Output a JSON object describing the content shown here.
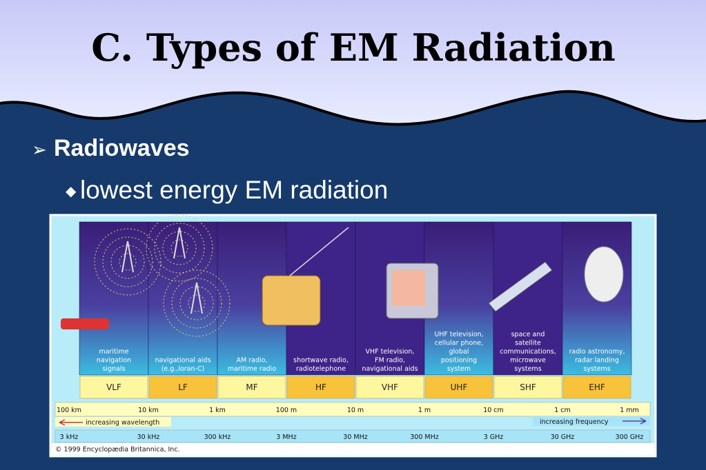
{
  "title": "C. Types of EM Radiation",
  "bullets": [
    {
      "text": "Radiowaves",
      "sub": [
        "lowest energy EM radiation"
      ]
    }
  ],
  "figure": {
    "bands": [
      {
        "label": "VLF",
        "description": [
          "maritime",
          "navigation",
          "signals"
        ]
      },
      {
        "label": "LF",
        "description": [
          "navigational aids",
          "(e.g.,loran-C)"
        ]
      },
      {
        "label": "MF",
        "description": [
          "AM radio,",
          "maritime radio"
        ]
      },
      {
        "label": "HF",
        "description": [
          "shortwave radio,",
          "radiotelephone"
        ]
      },
      {
        "label": "VHF",
        "description": [
          "VHF television,",
          "FM radio,",
          "navigational aids"
        ]
      },
      {
        "label": "UHF",
        "description": [
          "UHF television,",
          "cellular phone,",
          "global",
          "positioning",
          "system"
        ]
      },
      {
        "label": "SHF",
        "description": [
          "space and",
          "satellite",
          "communications,",
          "microwave",
          "systems"
        ]
      },
      {
        "label": "EHF",
        "description": [
          "radio astronomy,",
          "radar landing",
          "systems"
        ]
      }
    ],
    "wavelengths": [
      "100 km",
      "10 km",
      "1 km",
      "100 m",
      "10 m",
      "1 m",
      "10 cm",
      "1 cm",
      "1 mm"
    ],
    "frequencies": [
      "3 kHz",
      "30 kHz",
      "300 kHz",
      "3 MHz",
      "30 MHz",
      "300 MHz",
      "3 GHz",
      "30 GHz",
      "300 GHz"
    ],
    "wavelength_arrow": "increasing wavelength",
    "frequency_arrow": "increasing frequency",
    "copyright": "© 1999 Encyclopædia Britannica, Inc."
  }
}
